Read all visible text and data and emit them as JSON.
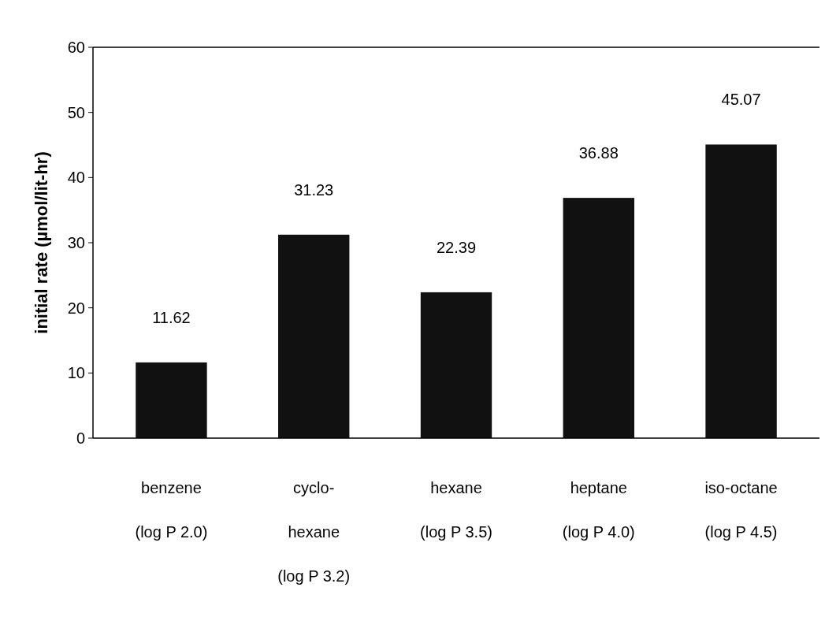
{
  "chart_data": {
    "type": "bar",
    "ylabel": "initial rate (µmol/lit-hr)",
    "categories": [
      "benzene\n(log P 2.0)",
      "cyclo-\nhexane\n(log P 3.2)",
      "hexane\n(log P 3.5)",
      "heptane\n(log P 4.0)",
      "iso-octane\n(log P 4.5)"
    ],
    "values": [
      11.62,
      31.23,
      22.39,
      36.88,
      45.07
    ],
    "color": "#111111",
    "ylim": [
      0,
      60
    ],
    "yticks": [
      0,
      10,
      20,
      30,
      40,
      50,
      60
    ],
    "grid": false,
    "data_labels": true
  }
}
